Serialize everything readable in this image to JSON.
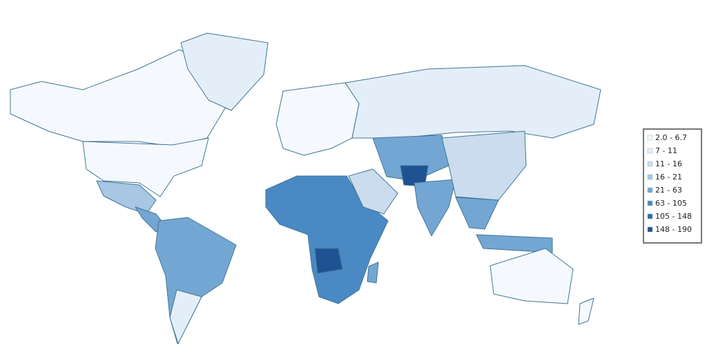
{
  "legend": {
    "items": [
      {
        "label": "2.0 - 6.7",
        "color": "#f5f9fd"
      },
      {
        "label": "7 - 11",
        "color": "#e4eef8"
      },
      {
        "label": "11 - 16",
        "color": "#cadcee"
      },
      {
        "label": "16 - 21",
        "color": "#a7c7e4"
      },
      {
        "label": "21 - 63",
        "color": "#74a6d3"
      },
      {
        "label": "63 - 105",
        "color": "#4a89c3"
      },
      {
        "label": "105 - 148",
        "color": "#306ca9"
      },
      {
        "label": "148 - 190",
        "color": "#1f5292"
      }
    ]
  }
}
